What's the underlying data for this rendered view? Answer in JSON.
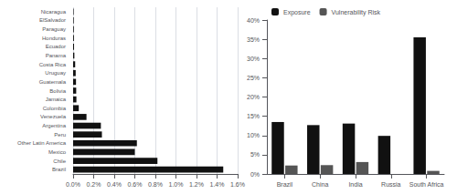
{
  "chart_data": [
    {
      "type": "bar",
      "orientation": "horizontal",
      "categories": [
        "Nicaragua",
        "ElSalvador",
        "Paraguay",
        "Honduras",
        "Ecuador",
        "Panama",
        "Costa Rica",
        "Uruguay",
        "Guatemala",
        "Bolivia",
        "Jamaica",
        "Colombia",
        "Venezuela",
        "Argentina",
        "Peru",
        "Other Latin America",
        "Mexico",
        "Chile",
        "Brazil"
      ],
      "values": [
        0.005,
        0.006,
        0.007,
        0.008,
        0.009,
        0.012,
        0.02,
        0.025,
        0.028,
        0.03,
        0.032,
        0.055,
        0.13,
        0.27,
        0.28,
        0.62,
        0.6,
        0.82,
        1.46
      ],
      "color": "#111111",
      "xlim": [
        0,
        1.6
      ],
      "xticks": [
        {
          "value": 0,
          "label": "0.0%"
        },
        {
          "value": 0.2,
          "label": "0.2%"
        },
        {
          "value": 0.4,
          "label": "0.4%"
        },
        {
          "value": 0.6,
          "label": "0.6%"
        },
        {
          "value": 0.8,
          "label": "0.8%"
        },
        {
          "value": 1.0,
          "label": "1.0%"
        },
        {
          "value": 1.2,
          "label": "1.2%"
        },
        {
          "value": 1.4,
          "label": "1.4%"
        },
        {
          "value": 1.6,
          "label": "1.6%"
        }
      ],
      "grid": true
    },
    {
      "type": "bar",
      "categories": [
        "Brazil",
        "China",
        "India",
        "Russia",
        "South Africa"
      ],
      "series": [
        {
          "name": "Exposure",
          "color": "#111111",
          "values": [
            13.5,
            12.7,
            13.1,
            9.9,
            35.5
          ]
        },
        {
          "name": "Vulnerability Risk",
          "color": "#555555",
          "values": [
            2.2,
            2.3,
            3.1,
            0.0,
            0.8
          ]
        }
      ],
      "ylim": [
        0,
        40
      ],
      "yticks": [
        {
          "value": 0,
          "label": "0%"
        },
        {
          "value": 5,
          "label": "5%"
        },
        {
          "value": 10,
          "label": "10%"
        },
        {
          "value": 15,
          "label": "15%"
        },
        {
          "value": 20,
          "label": "20%"
        },
        {
          "value": 25,
          "label": "25%"
        },
        {
          "value": 30,
          "label": "30%"
        },
        {
          "value": 35,
          "label": "35%"
        },
        {
          "value": 40,
          "label": "40%"
        }
      ],
      "grid": false,
      "legend": "upper left"
    }
  ]
}
